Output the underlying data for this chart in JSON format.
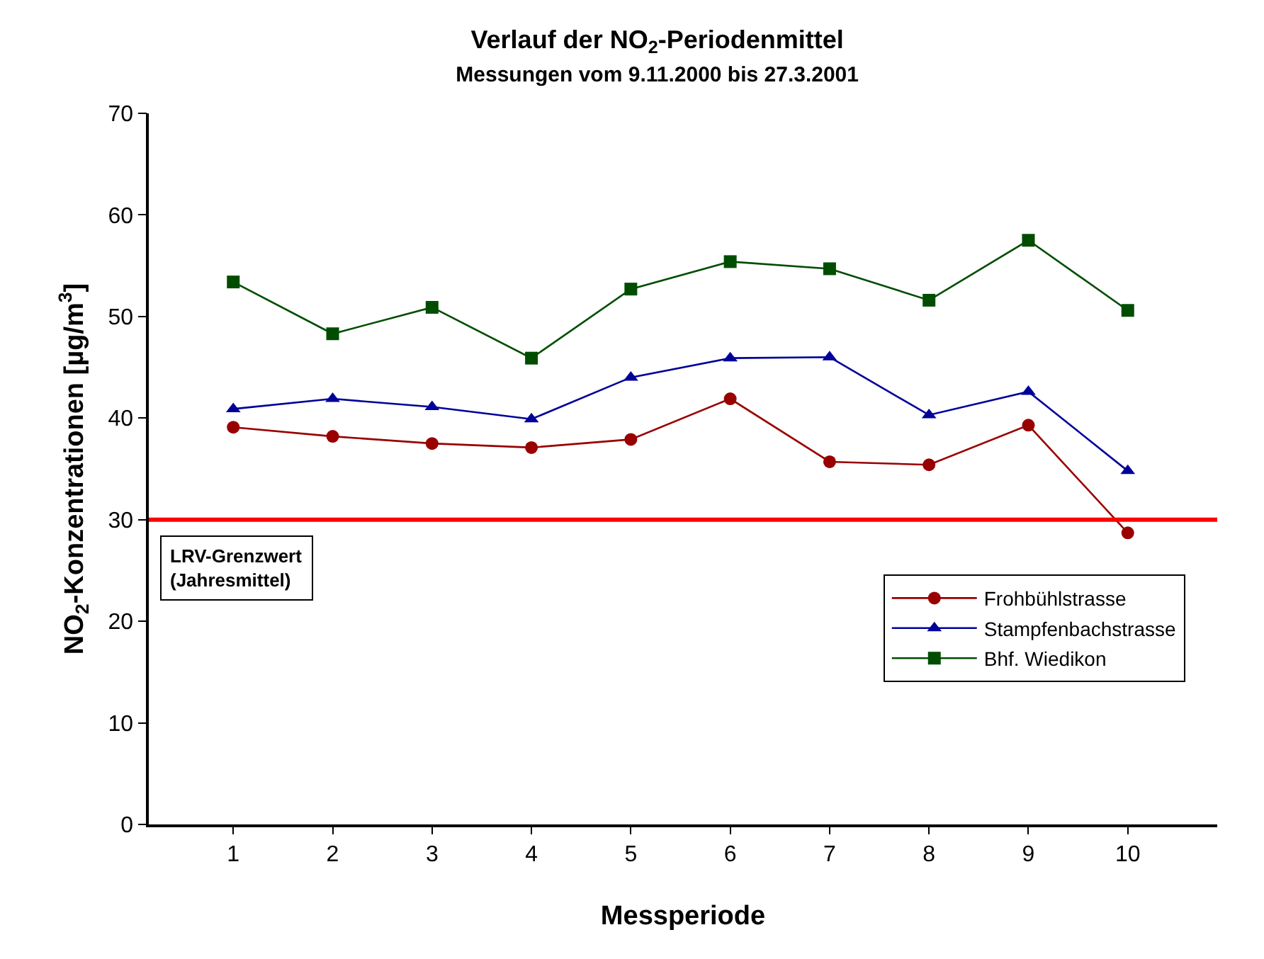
{
  "chart_data": {
    "type": "line",
    "title": "Verlauf der NO$_{2}$-Periodenmittel",
    "subtitle": "Messungen vom 9.11.2000 bis 27.3.2001",
    "xlabel": "Messperiode",
    "ylabel": "NO$_{2}$-Konzentrationen [µg/m$^{3}$]",
    "x": [
      1,
      2,
      3,
      4,
      5,
      6,
      7,
      8,
      9,
      10
    ],
    "series": [
      {
        "name": "Frohbühlstrasse",
        "color": "#990000",
        "marker": "circle",
        "values": [
          39.1,
          38.2,
          37.5,
          37.1,
          37.9,
          41.9,
          35.7,
          35.4,
          39.3,
          28.7
        ]
      },
      {
        "name": "Stampfenbachstrasse",
        "color": "#000099",
        "marker": "triangle",
        "values": [
          40.9,
          41.9,
          41.1,
          39.9,
          44.0,
          45.9,
          46.0,
          40.3,
          42.6,
          34.8
        ]
      },
      {
        "name": "Bhf. Wiedikon",
        "color": "#004d00",
        "marker": "square",
        "values": [
          53.4,
          48.3,
          50.9,
          45.9,
          52.7,
          55.4,
          54.7,
          51.6,
          57.5,
          50.6
        ]
      }
    ],
    "ref_lines": [
      {
        "axis": "y",
        "value": 30,
        "label": "LRV-Grenzwert\n(Jahresmittel)",
        "color": "#ff0000",
        "line_style": "solid"
      }
    ],
    "xlim": [
      0.15,
      10.9
    ],
    "xticks": [
      1,
      2,
      3,
      4,
      5,
      6,
      7,
      8,
      9,
      10
    ],
    "ylim": [
      0,
      70
    ],
    "yticks": [
      0,
      10,
      20,
      30,
      40,
      50,
      60,
      70
    ],
    "legend": "bottom right",
    "line_style": "solid"
  }
}
